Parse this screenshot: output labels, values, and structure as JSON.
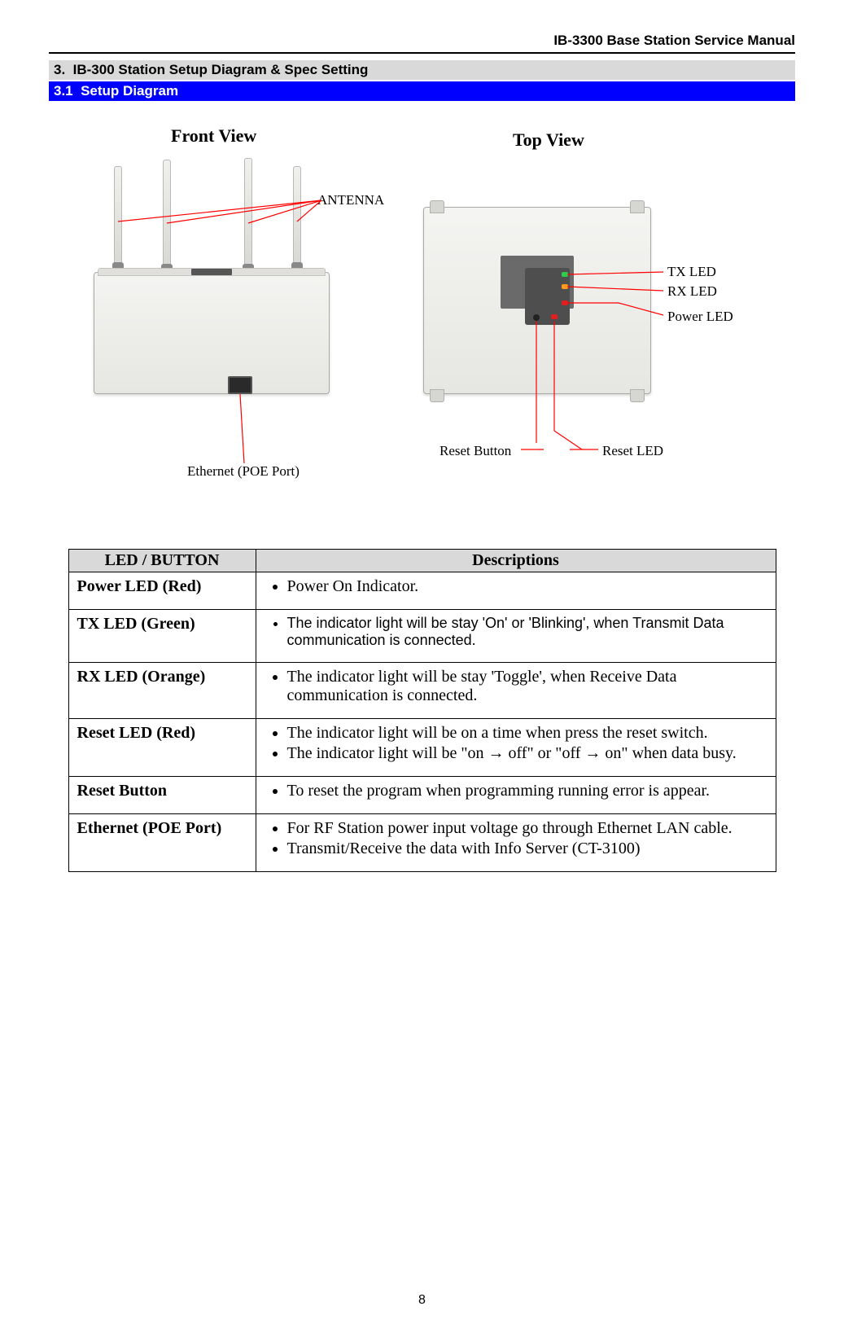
{
  "header": {
    "title": "IB-3300 Base Station Service Manual"
  },
  "section": {
    "num": "3.",
    "title": "IB-300 Station Setup Diagram & Spec Setting"
  },
  "subsection": {
    "num": "3.1",
    "title": "Setup Diagram"
  },
  "page_number": "8",
  "diagram": {
    "front_view_title": "Front View",
    "top_view_title": "Top View",
    "labels": {
      "antenna": "ANTENNA",
      "ethernet": "Ethernet (POE Port)",
      "tx_led": "TX LED",
      "rx_led": "RX LED",
      "power_led": "Power LED",
      "reset_button": "Reset Button",
      "reset_led": "Reset LED"
    },
    "colors": {
      "callout_line": "#ff0000",
      "device_fill_top": "#f4f4f2",
      "device_fill_bottom": "#e6e6e2",
      "top_panel": "#4e4e4e",
      "top_glass": "#6a6a6a"
    }
  },
  "table": {
    "columns": [
      "LED / BUTTON",
      "Descriptions"
    ],
    "rows": [
      {
        "name": "Power LED (Red)",
        "items": [
          {
            "text": "Power On Indicator.",
            "font": "serif"
          }
        ]
      },
      {
        "name": "TX LED (Green)",
        "items": [
          {
            "text": "The indicator light will be stay 'On' or 'Blinking', when Transmit Data communication is connected.",
            "font": "arial"
          }
        ]
      },
      {
        "name": "RX LED (Orange)",
        "items": [
          {
            "text": "The indicator light will be stay 'Toggle', when Receive Data communication is connected.",
            "font": "serif"
          }
        ]
      },
      {
        "name": "Reset LED (Red)",
        "items": [
          {
            "text": "The indicator light will be on a time when press the reset switch.",
            "font": "serif"
          },
          {
            "text": "The indicator light will be \"on → off\" or \"off → on\" when data busy.",
            "font": "serif"
          }
        ]
      },
      {
        "name": "Reset Button",
        "items": [
          {
            "text": "To reset the program when programming running error is appear.",
            "font": "serif"
          }
        ]
      },
      {
        "name": "Ethernet (POE Port)",
        "items": [
          {
            "text": "For RF Station power input voltage go through Ethernet LAN cable.",
            "font": "serif"
          },
          {
            "text": "Transmit/Receive the data with Info Server (CT-3100)",
            "font": "serif"
          }
        ]
      }
    ]
  }
}
